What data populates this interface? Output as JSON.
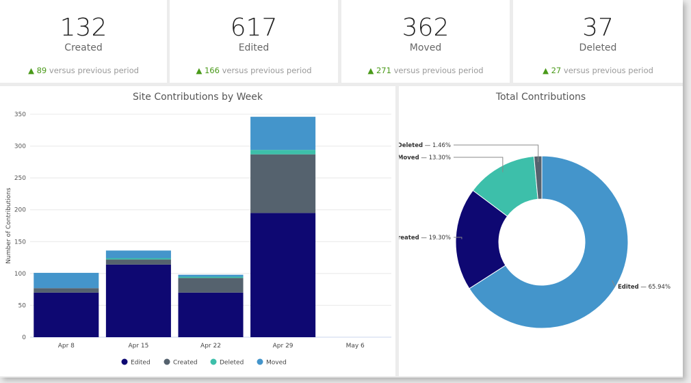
{
  "stats": [
    {
      "value": "132",
      "label": "Created",
      "delta": "89",
      "delta_text": "versus previous period"
    },
    {
      "value": "617",
      "label": "Edited",
      "delta": "166",
      "delta_text": "versus previous period"
    },
    {
      "value": "362",
      "label": "Moved",
      "delta": "271",
      "delta_text": "versus previous period"
    },
    {
      "value": "37",
      "label": "Deleted",
      "delta": "27",
      "delta_text": "versus previous period"
    }
  ],
  "colors": {
    "Edited": "#0e0872",
    "Created": "#55626e",
    "Deleted": "#3dbfaa",
    "Moved": "#4495cb",
    "up": "#4a9a1a"
  },
  "chart_data": [
    {
      "type": "bar",
      "stacked": true,
      "title": "Site Contributions by Week",
      "xlabel": "",
      "ylabel": "Number of Contributions",
      "ylim": [
        0,
        350
      ],
      "yticks": [
        0,
        50,
        100,
        150,
        200,
        250,
        300,
        350
      ],
      "grid": true,
      "legend": "bottom",
      "categories": [
        "Apr 8",
        "Apr 15",
        "Apr 22",
        "Apr 29",
        "May 6"
      ],
      "series": [
        {
          "name": "Edited",
          "values": [
            70,
            114,
            70,
            195,
            0
          ]
        },
        {
          "name": "Created",
          "values": [
            7,
            8,
            23,
            92,
            0
          ]
        },
        {
          "name": "Deleted",
          "values": [
            0,
            2,
            2,
            7,
            0
          ]
        },
        {
          "name": "Moved",
          "values": [
            24,
            12,
            3,
            52,
            0
          ]
        }
      ]
    },
    {
      "type": "pie",
      "donut": true,
      "title": "Total Contributions",
      "slices": [
        {
          "name": "Edited",
          "value": 65.94,
          "label": "65.94%",
          "color": "#4495cb"
        },
        {
          "name": "Created",
          "value": 19.3,
          "label": "19.30%",
          "color": "#0e0872"
        },
        {
          "name": "Moved",
          "value": 13.3,
          "label": "13.30%",
          "color": "#3dbfaa"
        },
        {
          "name": "Deleted",
          "value": 1.46,
          "label": "1.46%",
          "color": "#55626e"
        }
      ]
    }
  ]
}
